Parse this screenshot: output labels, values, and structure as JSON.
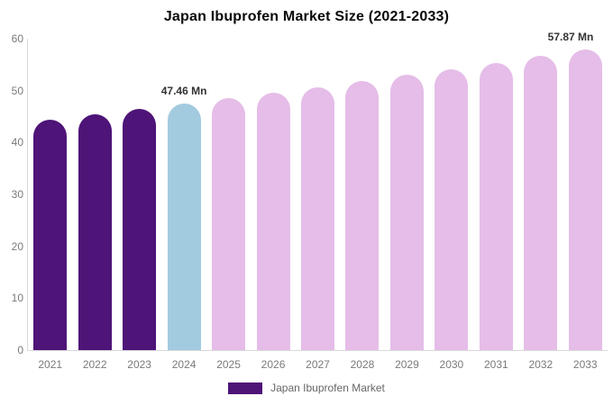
{
  "title": "Japan Ibuprofen Market Size (2021-2033)",
  "legend": {
    "label": "Japan Ibuprofen Market",
    "swatch_color": "#4E1478"
  },
  "colors": {
    "historical_bar": "#4E1478",
    "highlight_bar": "#A3CBE0",
    "forecast_bar": "#E5BDE8",
    "axis_line": "#D9D9D9",
    "tick_text": "#7A7A7A",
    "annotation_text": "#333333",
    "title_text": "#0A0A0A"
  },
  "chart_data": {
    "type": "bar",
    "title": "Japan Ibuprofen Market Size (2021-2033)",
    "unit": "Mn",
    "categories": [
      "2021",
      "2022",
      "2023",
      "2024",
      "2025",
      "2026",
      "2027",
      "2028",
      "2029",
      "2030",
      "2031",
      "2032",
      "2033"
    ],
    "values": [
      44.4,
      45.41,
      46.42,
      47.46,
      48.52,
      49.6,
      50.71,
      51.84,
      53.0,
      54.18,
      55.39,
      56.62,
      57.87
    ],
    "segments": [
      "historical",
      "historical",
      "historical",
      "highlight",
      "forecast",
      "forecast",
      "forecast",
      "forecast",
      "forecast",
      "forecast",
      "forecast",
      "forecast",
      "forecast"
    ],
    "segment_colors": {
      "historical": "#4E1478",
      "highlight": "#A3CBE0",
      "forecast": "#E5BDE8"
    },
    "annotations": [
      {
        "category": "2024",
        "text": "47.46 Mn"
      },
      {
        "category": "2033",
        "text": "57.87 Mn"
      }
    ],
    "xlabel": "",
    "ylabel": "",
    "ylim": [
      0,
      60
    ],
    "y_ticks": [
      0,
      10,
      20,
      30,
      40,
      50,
      60
    ],
    "grid": false,
    "legend_position": "bottom",
    "legend_entries": [
      "Japan Ibuprofen Market"
    ]
  }
}
